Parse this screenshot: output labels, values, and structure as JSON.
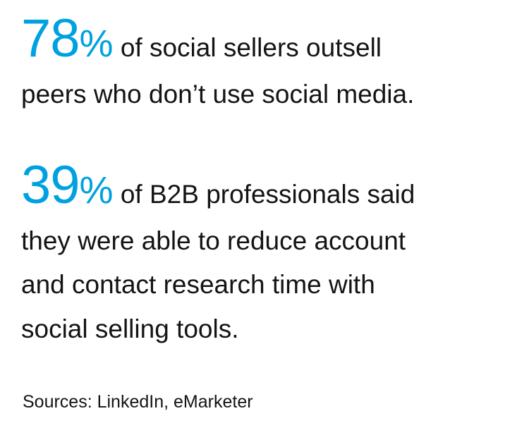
{
  "stat1": {
    "number": "78",
    "percent": "%",
    "lines": [
      "of social sellers outsell",
      "peers who don’t use social media."
    ]
  },
  "stat2": {
    "number": "39",
    "percent": "%",
    "lines": [
      "of B2B professionals said",
      "they were able to reduce account",
      "and contact research time with",
      "social selling tools."
    ]
  },
  "sources": "Sources: LinkedIn, eMarketer",
  "colors": {
    "accent": "#00a1e0",
    "text": "#141414"
  }
}
